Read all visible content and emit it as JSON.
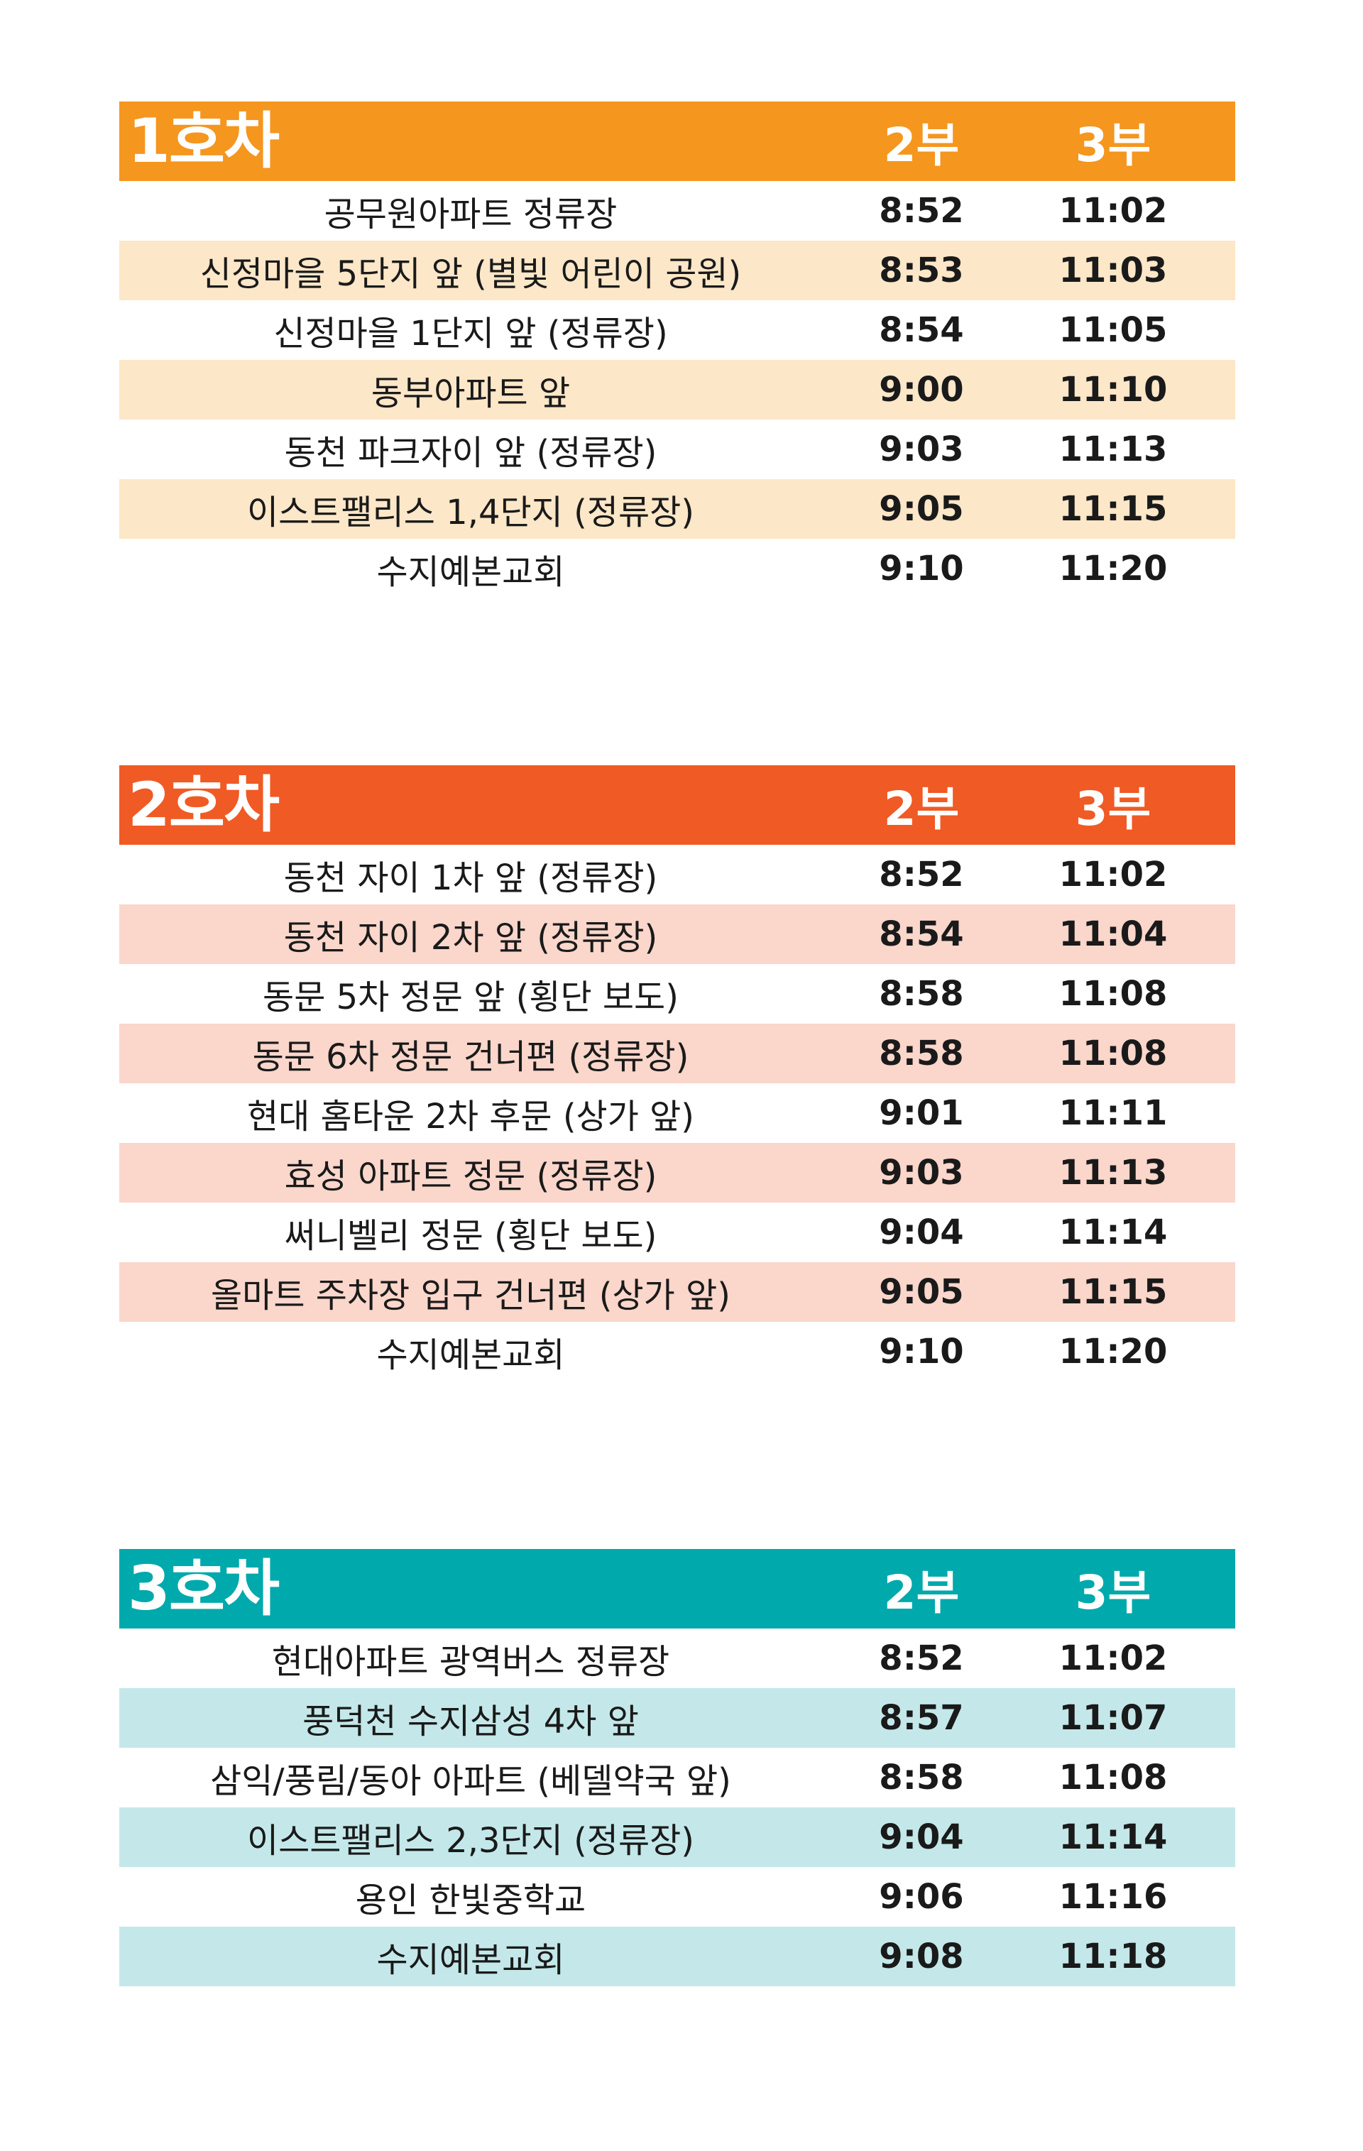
{
  "colors": {
    "bus1_header": "#F5961F",
    "bus1_alt_row": "#FCE7C8",
    "bus2_header": "#F05A24",
    "bus2_alt_row": "#FAD6CB",
    "bus3_header": "#00A9AC",
    "bus3_alt_row": "#C4E8E9"
  },
  "buses": [
    {
      "title": "1호차",
      "col_a": "2부",
      "col_b": "3부",
      "rows": [
        {
          "stop": "공무원아파트 정류장",
          "a": "8:52",
          "b": "11:02"
        },
        {
          "stop": "신정마을 5단지 앞 (별빛 어린이 공원)",
          "a": "8:53",
          "b": "11:03"
        },
        {
          "stop": "신정마을 1단지 앞 (정류장)",
          "a": "8:54",
          "b": "11:05"
        },
        {
          "stop": "동부아파트 앞",
          "a": "9:00",
          "b": "11:10"
        },
        {
          "stop": "동천 파크자이 앞 (정류장)",
          "a": "9:03",
          "b": "11:13"
        },
        {
          "stop": "이스트팰리스 1,4단지 (정류장)",
          "a": "9:05",
          "b": "11:15"
        },
        {
          "stop": "수지예본교회",
          "a": "9:10",
          "b": "11:20"
        }
      ]
    },
    {
      "title": "2호차",
      "col_a": "2부",
      "col_b": "3부",
      "rows": [
        {
          "stop": "동천 자이 1차 앞 (정류장)",
          "a": "8:52",
          "b": "11:02"
        },
        {
          "stop": "동천 자이 2차 앞 (정류장)",
          "a": "8:54",
          "b": "11:04"
        },
        {
          "stop": "동문 5차 정문 앞 (횡단 보도)",
          "a": "8:58",
          "b": "11:08"
        },
        {
          "stop": "동문 6차 정문 건너편 (정류장)",
          "a": "8:58",
          "b": "11:08"
        },
        {
          "stop": "현대 홈타운 2차 후문 (상가 앞)",
          "a": "9:01",
          "b": "11:11"
        },
        {
          "stop": "효성 아파트 정문 (정류장)",
          "a": "9:03",
          "b": "11:13"
        },
        {
          "stop": "써니벨리 정문 (횡단 보도)",
          "a": "9:04",
          "b": "11:14"
        },
        {
          "stop": "올마트 주차장 입구 건너편 (상가 앞)",
          "a": "9:05",
          "b": "11:15"
        },
        {
          "stop": "수지예본교회",
          "a": "9:10",
          "b": "11:20"
        }
      ]
    },
    {
      "title": "3호차",
      "col_a": "2부",
      "col_b": "3부",
      "rows": [
        {
          "stop": "현대아파트 광역버스 정류장",
          "a": "8:52",
          "b": "11:02"
        },
        {
          "stop": "풍덕천 수지삼성 4차 앞",
          "a": "8:57",
          "b": "11:07"
        },
        {
          "stop": "삼익/풍림/동아 아파트 (베델약국 앞)",
          "a": "8:58",
          "b": "11:08"
        },
        {
          "stop": "이스트팰리스 2,3단지 (정류장)",
          "a": "9:04",
          "b": "11:14"
        },
        {
          "stop": "용인 한빛중학교",
          "a": "9:06",
          "b": "11:16"
        },
        {
          "stop": "수지예본교회",
          "a": "9:08",
          "b": "11:18"
        }
      ]
    }
  ]
}
